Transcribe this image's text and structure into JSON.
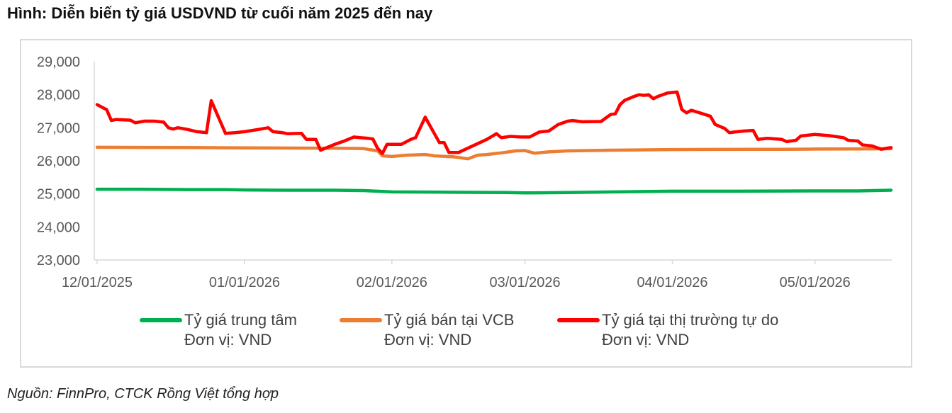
{
  "title": "Hình: Diễn biến tỷ giá USDVND từ cuối năm 2025 đến nay",
  "source": "Nguồn: FinnPro, CTCK Rồng Việt tổng hợp",
  "colors": {
    "central": "#00b050",
    "vcb": "#ed7d31",
    "free": "#ff0000"
  },
  "chart_data": {
    "type": "line",
    "title": "Hình: Diễn biến tỷ giá USDVND từ cuối năm 2025 đến nay",
    "ylim": [
      23000,
      29000
    ],
    "yticks": [
      "23,000",
      "24,000",
      "25,000",
      "26,000",
      "27,000",
      "28,000",
      "29,000"
    ],
    "ytick_values": [
      23000,
      24000,
      25000,
      26000,
      27000,
      28000,
      29000
    ],
    "xticks": [
      "12/01/2025",
      "01/01/2026",
      "02/01/2026",
      "03/01/2026",
      "04/01/2026",
      "05/01/2026"
    ],
    "xtick_values": [
      "2025-12-01",
      "2026-01-01",
      "2026-02-01",
      "2026-03-01",
      "2026-04-01",
      "2026-05-01"
    ],
    "grid": false,
    "legend_position": "bottom",
    "series": [
      {
        "name": "Tỷ giá trung tâm",
        "unit_label": "Đơn vị: VND",
        "color": "#00b050",
        "points": [
          [
            "2025-12-01",
            25140
          ],
          [
            "2025-12-10",
            25140
          ],
          [
            "2025-12-20",
            25130
          ],
          [
            "2025-12-28",
            25130
          ],
          [
            "2026-01-01",
            25120
          ],
          [
            "2026-01-10",
            25110
          ],
          [
            "2026-01-20",
            25110
          ],
          [
            "2026-01-26",
            25100
          ],
          [
            "2026-02-01",
            25060
          ],
          [
            "2026-02-12",
            25050
          ],
          [
            "2026-02-25",
            25040
          ],
          [
            "2026-03-01",
            25030
          ],
          [
            "2026-03-10",
            25040
          ],
          [
            "2026-03-20",
            25060
          ],
          [
            "2026-04-01",
            25080
          ],
          [
            "2026-04-15",
            25080
          ],
          [
            "2026-05-01",
            25090
          ],
          [
            "2026-05-10",
            25090
          ],
          [
            "2026-05-17",
            25110
          ]
        ]
      },
      {
        "name": "Tỷ giá bán tại VCB",
        "unit_label": "Đơn vị: VND",
        "color": "#ed7d31",
        "points": [
          [
            "2025-12-01",
            26410
          ],
          [
            "2025-12-10",
            26405
          ],
          [
            "2025-12-20",
            26400
          ],
          [
            "2025-12-28",
            26395
          ],
          [
            "2026-01-01",
            26390
          ],
          [
            "2026-01-10",
            26385
          ],
          [
            "2026-01-20",
            26380
          ],
          [
            "2026-01-26",
            26370
          ],
          [
            "2026-01-29",
            26300
          ],
          [
            "2026-01-30",
            26150
          ],
          [
            "2026-02-01",
            26130
          ],
          [
            "2026-02-04",
            26170
          ],
          [
            "2026-02-08",
            26190
          ],
          [
            "2026-02-10",
            26150
          ],
          [
            "2026-02-14",
            26120
          ],
          [
            "2026-02-17",
            26060
          ],
          [
            "2026-02-19",
            26170
          ],
          [
            "2026-02-21",
            26190
          ],
          [
            "2026-02-24",
            26240
          ],
          [
            "2026-02-27",
            26300
          ],
          [
            "2026-03-01",
            26310
          ],
          [
            "2026-03-03",
            26230
          ],
          [
            "2026-03-06",
            26270
          ],
          [
            "2026-03-10",
            26300
          ],
          [
            "2026-03-18",
            26320
          ],
          [
            "2026-03-25",
            26330
          ],
          [
            "2026-04-01",
            26340
          ],
          [
            "2026-04-10",
            26345
          ],
          [
            "2026-04-20",
            26350
          ],
          [
            "2026-04-25",
            26350
          ],
          [
            "2026-05-01",
            26355
          ],
          [
            "2026-05-10",
            26360
          ],
          [
            "2026-05-17",
            26365
          ]
        ]
      },
      {
        "name": "Tỷ giá tại thị trường tự do",
        "unit_label": "Đơn vị: VND",
        "color": "#ff0000",
        "points": [
          [
            "2025-12-01",
            27700
          ],
          [
            "2025-12-03",
            27550
          ],
          [
            "2025-12-04",
            27220
          ],
          [
            "2025-12-05",
            27250
          ],
          [
            "2025-12-08",
            27230
          ],
          [
            "2025-12-09",
            27150
          ],
          [
            "2025-12-11",
            27200
          ],
          [
            "2025-12-13",
            27200
          ],
          [
            "2025-12-15",
            27170
          ],
          [
            "2025-12-16",
            27000
          ],
          [
            "2025-12-17",
            26960
          ],
          [
            "2025-12-18",
            27000
          ],
          [
            "2025-12-20",
            26950
          ],
          [
            "2025-12-22",
            26880
          ],
          [
            "2025-12-24",
            26850
          ],
          [
            "2025-12-25",
            27820
          ],
          [
            "2025-12-28",
            26830
          ],
          [
            "2025-12-30",
            26850
          ],
          [
            "2026-01-01",
            26880
          ],
          [
            "2026-01-04",
            26950
          ],
          [
            "2026-01-06",
            27000
          ],
          [
            "2026-01-07",
            26880
          ],
          [
            "2026-01-09",
            26850
          ],
          [
            "2026-01-10",
            26820
          ],
          [
            "2026-01-13",
            26830
          ],
          [
            "2026-01-14",
            26650
          ],
          [
            "2026-01-16",
            26650
          ],
          [
            "2026-01-17",
            26320
          ],
          [
            "2026-01-20",
            26500
          ],
          [
            "2026-01-22",
            26600
          ],
          [
            "2026-01-24",
            26720
          ],
          [
            "2026-01-27",
            26680
          ],
          [
            "2026-01-28",
            26660
          ],
          [
            "2026-01-29",
            26380
          ],
          [
            "2026-01-30",
            26220
          ],
          [
            "2026-01-31",
            26500
          ],
          [
            "2026-02-03",
            26500
          ],
          [
            "2026-02-05",
            26650
          ],
          [
            "2026-02-06",
            26700
          ],
          [
            "2026-02-08",
            27320
          ],
          [
            "2026-02-11",
            26550
          ],
          [
            "2026-02-12",
            26550
          ],
          [
            "2026-02-13",
            26250
          ],
          [
            "2026-02-15",
            26250
          ],
          [
            "2026-02-21",
            26650
          ],
          [
            "2026-02-23",
            26820
          ],
          [
            "2026-02-24",
            26700
          ],
          [
            "2026-02-26",
            26740
          ],
          [
            "2026-02-28",
            26720
          ],
          [
            "2026-03-02",
            26720
          ],
          [
            "2026-03-04",
            26870
          ],
          [
            "2026-03-06",
            26900
          ],
          [
            "2026-03-08",
            27100
          ],
          [
            "2026-03-10",
            27200
          ],
          [
            "2026-03-11",
            27220
          ],
          [
            "2026-03-13",
            27180
          ],
          [
            "2026-03-17",
            27190
          ],
          [
            "2026-03-19",
            27400
          ],
          [
            "2026-03-20",
            27420
          ],
          [
            "2026-03-21",
            27700
          ],
          [
            "2026-03-22",
            27830
          ],
          [
            "2026-03-24",
            27950
          ],
          [
            "2026-03-25",
            28000
          ],
          [
            "2026-03-26",
            27980
          ],
          [
            "2026-03-27",
            28000
          ],
          [
            "2026-03-28",
            27880
          ],
          [
            "2026-03-29",
            27950
          ],
          [
            "2026-03-31",
            28050
          ],
          [
            "2026-04-02",
            28080
          ],
          [
            "2026-04-03",
            27550
          ],
          [
            "2026-04-04",
            27450
          ],
          [
            "2026-04-05",
            27530
          ],
          [
            "2026-04-07",
            27440
          ],
          [
            "2026-04-09",
            27350
          ],
          [
            "2026-04-10",
            27100
          ],
          [
            "2026-04-12",
            26980
          ],
          [
            "2026-04-13",
            26850
          ],
          [
            "2026-04-14",
            26870
          ],
          [
            "2026-04-16",
            26900
          ],
          [
            "2026-04-18",
            26920
          ],
          [
            "2026-04-19",
            26650
          ],
          [
            "2026-04-21",
            26680
          ],
          [
            "2026-04-24",
            26650
          ],
          [
            "2026-04-25",
            26580
          ],
          [
            "2026-04-27",
            26620
          ],
          [
            "2026-04-28",
            26750
          ],
          [
            "2026-05-01",
            26800
          ],
          [
            "2026-05-04",
            26760
          ],
          [
            "2026-05-07",
            26700
          ],
          [
            "2026-05-08",
            26620
          ],
          [
            "2026-05-10",
            26600
          ],
          [
            "2026-05-11",
            26480
          ],
          [
            "2026-05-13",
            26450
          ],
          [
            "2026-05-15",
            26350
          ],
          [
            "2026-05-16",
            26380
          ],
          [
            "2026-05-17",
            26400
          ]
        ]
      }
    ]
  }
}
